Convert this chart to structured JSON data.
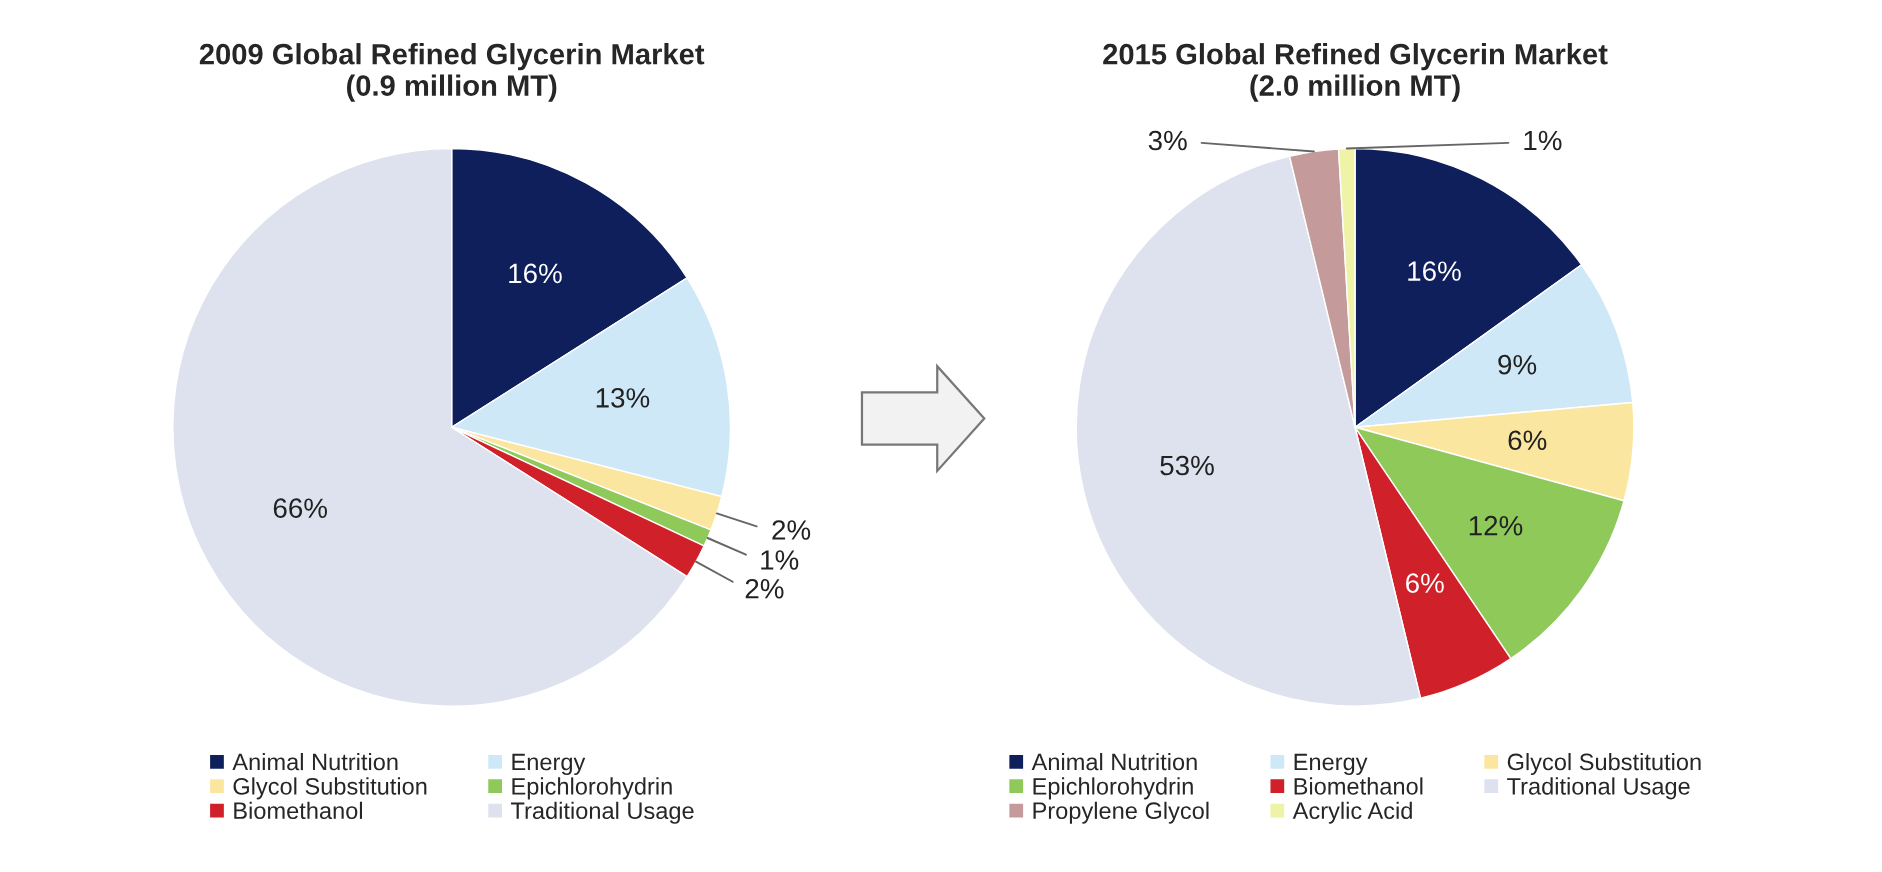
{
  "chart_data": [
    {
      "type": "pie",
      "title": "2009 Global Refined Glycerin Market\n(0.9 million MT)",
      "categories": [
        "Animal Nutrition",
        "Energy",
        "Glycol Substitution",
        "Epichlorohydrin",
        "Biomethanol",
        "Traditional Usage"
      ],
      "values": [
        16,
        13,
        2,
        1,
        2,
        66
      ],
      "value_labels": [
        "16%",
        "13%",
        "2%",
        "1%",
        "2%",
        "66%"
      ],
      "colors": [
        "#0f1f5c",
        "#cfe8f7",
        "#fbe6a0",
        "#8fc95a",
        "#d0202a",
        "#dde2ee"
      ],
      "legend": "bottom"
    },
    {
      "type": "pie",
      "title": "2015 Global Refined Glycerin Market\n(2.0 million MT)",
      "categories": [
        "Animal Nutrition",
        "Energy",
        "Glycol Substitution",
        "Epichlorohydrin",
        "Biomethanol",
        "Traditional Usage",
        "Propylene Glycol",
        "Acrylic Acid"
      ],
      "values": [
        16,
        9,
        6,
        12,
        6,
        53,
        3,
        1
      ],
      "value_labels": [
        "16%",
        "9%",
        "6%",
        "12%",
        "6%",
        "53%",
        "3%",
        "1%"
      ],
      "colors": [
        "#0f1f5c",
        "#cfe8f7",
        "#fbe6a0",
        "#8fc95a",
        "#d0202a",
        "#dde2ee",
        "#c49a9a",
        "#eef3a8"
      ],
      "legend": "bottom"
    }
  ]
}
